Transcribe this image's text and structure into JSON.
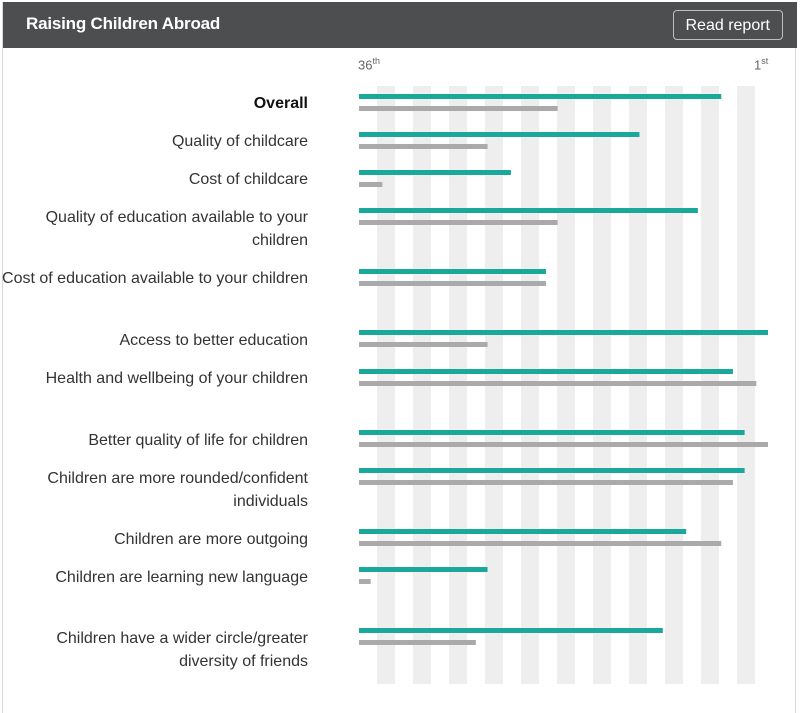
{
  "header": {
    "title": "Raising Children Abroad",
    "button_label": "Read report"
  },
  "axis": {
    "left_label": "36",
    "left_suffix": "th",
    "right_label": "1",
    "right_suffix": "st"
  },
  "colors": {
    "header_bg": "#4d4e50",
    "series_primary": "#1aa89a",
    "series_secondary": "#aaaaaa",
    "stripe": "#eeeeee"
  },
  "chart_data": {
    "type": "bar",
    "orientation": "horizontal",
    "title": "Raising Children Abroad",
    "xlim": [
      36,
      1
    ],
    "x_ticks": [
      "36th",
      "1st"
    ],
    "grid": "alternating vertical stripes",
    "categories": [
      "Overall",
      "Quality of childcare",
      "Cost of childcare",
      "Quality of education available to your children",
      "Cost of education available to your children",
      "Access to better education",
      "Health and wellbeing of your children",
      "Better quality of life for children",
      "Children are more rounded/confident individuals",
      "Children are more outgoing",
      "Children are learning new language",
      "Children have a wider circle/greater diversity of friends"
    ],
    "series": [
      {
        "color": "#1aa89a",
        "values": [
          5,
          12,
          23,
          7,
          20,
          1,
          4,
          3,
          3,
          8,
          25,
          10
        ]
      },
      {
        "color": "#aaaaaa",
        "values": [
          19,
          25,
          34,
          19,
          20,
          25,
          2,
          1,
          4,
          5,
          35,
          26
        ]
      }
    ]
  },
  "rows": [
    {
      "label": "Overall"
    },
    {
      "label": "Quality of childcare"
    },
    {
      "label": "Cost of childcare"
    },
    {
      "label": "Quality of education available to your children"
    },
    {
      "label": "Cost of education available to your children"
    },
    {
      "label": "Access to better education"
    },
    {
      "label": "Health and wellbeing of your children"
    },
    {
      "label": "Better quality of life for children"
    },
    {
      "label": "Children are more rounded/confident individuals"
    },
    {
      "label": "Children are more outgoing"
    },
    {
      "label": "Children are learning new language"
    },
    {
      "label": "Children have a wider circle/greater diversity of friends"
    }
  ]
}
